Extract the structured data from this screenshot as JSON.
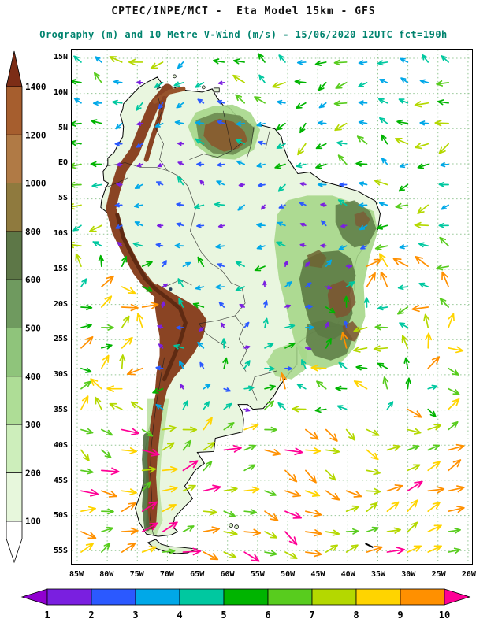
{
  "header": {
    "title": "CPTEC/INPE/MCT -  Eta Model 15km - GFS",
    "subtitle": "Orography (m) and 10 Metre V-Wind (m/s) - 15/06/2020 12UTC fct=190h"
  },
  "colors": {
    "title": "#111111",
    "subtitle": "#00836e",
    "grid": "#94c694",
    "coastline": "#000000",
    "ocean": "#ffffff",
    "land_base": "#e9f6df"
  },
  "axes": {
    "lat_ticks": [
      "15N",
      "10N",
      "5N",
      "EQ",
      "5S",
      "10S",
      "15S",
      "20S",
      "25S",
      "30S",
      "35S",
      "40S",
      "45S",
      "50S",
      "55S"
    ],
    "lon_ticks": [
      "85W",
      "80W",
      "75W",
      "70W",
      "65W",
      "60W",
      "55W",
      "50W",
      "45W",
      "40W",
      "35W",
      "30W",
      "25W",
      "20W"
    ]
  },
  "elevation_scale": {
    "name": "Orography",
    "unit": "m",
    "labels_top_to_bottom": [
      "1400",
      "1200",
      "1000",
      "800",
      "600",
      "500",
      "400",
      "300",
      "200",
      "100"
    ],
    "colors_top_to_bottom": [
      "#7c2d16",
      "#a65e2e",
      "#b07a45",
      "#8f7a3e",
      "#5d7747",
      "#6f9a5f",
      "#8fc47b",
      "#aedd96",
      "#cdeebb",
      "#e7f7dc",
      "#ffffff"
    ]
  },
  "wind_scale": {
    "name": "10 Metre V-Wind",
    "unit": "m/s",
    "labels_left_to_right": [
      "1",
      "2",
      "3",
      "4",
      "5",
      "6",
      "7",
      "8",
      "9",
      "10"
    ],
    "colors_left_to_right": [
      "#9000d0",
      "#7a1fe0",
      "#2b59ff",
      "#00a8e8",
      "#00c8a0",
      "#00b400",
      "#58cc1e",
      "#b4d800",
      "#ffd400",
      "#ff9000",
      "#ff0096"
    ]
  },
  "chart_data": {
    "type": "heatmap",
    "title": "CPTEC/INPE/MCT -  Eta Model 15km - GFS",
    "subtitle": "Orography (m) and 10 Metre V-Wind (m/s) - 15/06/2020 12UTC fct=190h",
    "source": "CPTEC/INPE/MCT",
    "model": "Eta Model 15km",
    "boundary_conditions": "GFS",
    "valid": "15/06/2020 12UTC",
    "forecast": "fct=190h",
    "x_tick_labels": [
      "85W",
      "80W",
      "75W",
      "70W",
      "65W",
      "60W",
      "55W",
      "50W",
      "45W",
      "40W",
      "35W",
      "30W",
      "25W",
      "20W"
    ],
    "y_tick_labels": [
      "15N",
      "10N",
      "5N",
      "EQ",
      "5S",
      "10S",
      "15S",
      "20S",
      "25S",
      "30S",
      "35S",
      "40S",
      "45S",
      "50S",
      "55S"
    ],
    "grid": "dotted green lat/lon grid every 5 degrees",
    "layers": [
      {
        "name": "orography",
        "unit": "m",
        "render": "filled_shading_over_south_america",
        "levels": [
          100,
          200,
          300,
          400,
          500,
          600,
          800,
          1000,
          1200,
          1400
        ],
        "palette_low_to_high": [
          "#ffffff",
          "#e7f7dc",
          "#cdeebb",
          "#aedd96",
          "#8fc47b",
          "#6f9a5f",
          "#5d7747",
          "#8f7a3e",
          "#b07a45",
          "#a65e2e",
          "#7c2d16"
        ]
      },
      {
        "name": "10_metre_v_wind",
        "unit": "m/s",
        "render": "vector_arrows_colored_by_speed",
        "speed_levels": [
          1,
          2,
          3,
          4,
          5,
          6,
          7,
          8,
          9,
          10
        ],
        "palette_low_to_high": [
          "#9000d0",
          "#7a1fe0",
          "#2b59ff",
          "#00a8e8",
          "#00c8a0",
          "#00b400",
          "#58cc1e",
          "#b4d800",
          "#ffd400",
          "#ff9000",
          "#ff0096"
        ],
        "pattern": "weak purple/blue vectors over the continent, easterly trades in the tropics, strong orange/magenta westerlies over the southern oceans"
      }
    ]
  }
}
